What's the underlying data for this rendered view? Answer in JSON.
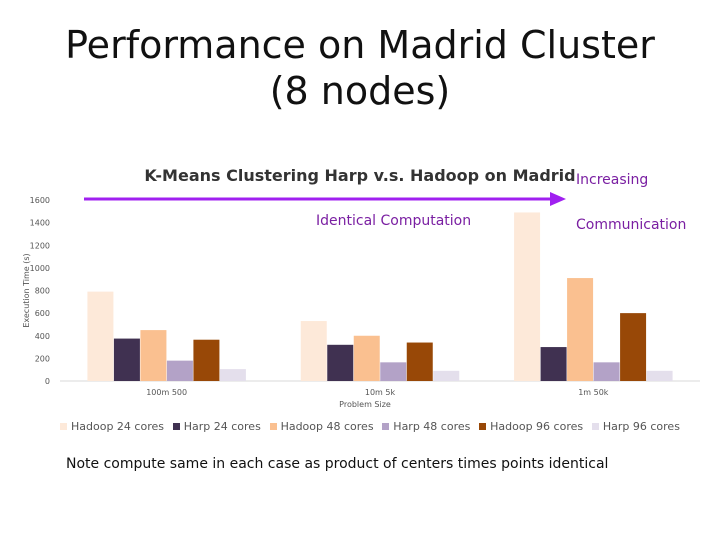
{
  "slide": {
    "title": "Performance on Madrid Cluster (8 nodes)",
    "note": "Note compute same in each case as product of centers times points identical"
  },
  "callouts": {
    "increasing": "Increasing",
    "identical": "Identical Computation",
    "communication": "Communication",
    "arrow_color": "#a020f0"
  },
  "chart_data": {
    "type": "bar",
    "title": "K-Means Clustering Harp v.s. Hadoop on Madrid",
    "xlabel": "Problem Size",
    "ylabel": "Execution Time (s)",
    "ylim": [
      0,
      1600
    ],
    "yticks": [
      0,
      200,
      400,
      600,
      800,
      1000,
      1200,
      1400,
      1600
    ],
    "categories": [
      "100m 500",
      "10m 5k",
      "1m 50k"
    ],
    "series": [
      {
        "name": "Hadoop 24 cores",
        "color": "#fde9d9",
        "values": [
          790,
          530,
          1490
        ]
      },
      {
        "name": "Harp 24 cores",
        "color": "#403151",
        "values": [
          375,
          320,
          300
        ]
      },
      {
        "name": "Hadoop 48 cores",
        "color": "#fac090",
        "values": [
          450,
          400,
          910
        ]
      },
      {
        "name": "Harp 48 cores",
        "color": "#b3a2c7",
        "values": [
          180,
          165,
          165
        ]
      },
      {
        "name": "Hadoop 96 cores",
        "color": "#984807",
        "values": [
          365,
          340,
          600
        ]
      },
      {
        "name": "Harp 96 cores",
        "color": "#e4dfec",
        "values": [
          105,
          90,
          90
        ]
      }
    ]
  }
}
